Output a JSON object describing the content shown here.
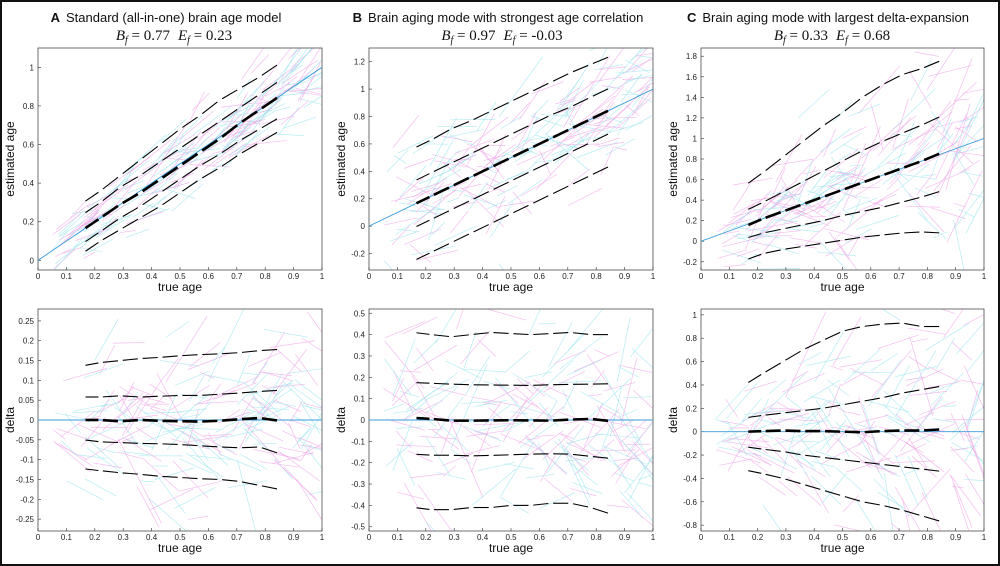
{
  "colors": {
    "ref_line": "#3a9bd8",
    "median": "#000000",
    "quantile": "#000000",
    "trace_pink": "#f0a8e8",
    "trace_cyan": "#9ee6ee"
  },
  "panels": [
    {
      "letter": "A",
      "title": "Standard (all-in-one) brain age model",
      "metrics": {
        "b_label": "B",
        "b_sub": "f",
        "b_value": "0.77",
        "e_label": "E",
        "e_sub": "f",
        "e_value": "0.23"
      }
    },
    {
      "letter": "B",
      "title": "Brain aging mode with strongest age correlation",
      "metrics": {
        "b_label": "B",
        "b_sub": "f",
        "b_value": "0.97",
        "e_label": "E",
        "e_sub": "f",
        "e_value": "-0.03"
      }
    },
    {
      "letter": "C",
      "title": "Brain aging mode with largest delta-expansion",
      "metrics": {
        "b_label": "B",
        "b_sub": "f",
        "b_value": "0.33",
        "e_label": "E",
        "e_sub": "f",
        "e_value": "0.68"
      }
    }
  ],
  "chart_data": [
    {
      "type": "line",
      "panel": "A",
      "row": "top",
      "xlabel": "true age",
      "ylabel": "estimated age",
      "xlim": [
        0,
        1
      ],
      "ylim": [
        -0.05,
        1.1
      ],
      "xticks": [
        "0",
        "0.1",
        "0.2",
        "0.3",
        "0.4",
        "0.5",
        "0.6",
        "0.7",
        "0.8",
        "0.9",
        "1"
      ],
      "yticks": [
        "0",
        "0.2",
        "0.4",
        "0.6",
        "0.8",
        "1"
      ],
      "x": [
        0.16,
        0.22,
        0.29,
        0.36,
        0.43,
        0.5,
        0.57,
        0.64,
        0.71,
        0.78,
        0.85
      ],
      "reference_line": [
        [
          0,
          0
        ],
        [
          1,
          1
        ]
      ],
      "series": [
        {
          "name": "median",
          "values": [
            0.16,
            0.22,
            0.29,
            0.35,
            0.42,
            0.49,
            0.56,
            0.63,
            0.71,
            0.78,
            0.85
          ]
        },
        {
          "name": "q-upper-inner",
          "values": [
            0.24,
            0.3,
            0.38,
            0.44,
            0.51,
            0.58,
            0.65,
            0.72,
            0.79,
            0.86,
            0.93
          ]
        },
        {
          "name": "q-lower-inner",
          "values": [
            0.09,
            0.15,
            0.22,
            0.28,
            0.35,
            0.42,
            0.49,
            0.55,
            0.62,
            0.68,
            0.74
          ]
        },
        {
          "name": "q-upper-outer",
          "values": [
            0.3,
            0.36,
            0.44,
            0.52,
            0.6,
            0.68,
            0.75,
            0.83,
            0.89,
            0.95,
            1.02
          ]
        },
        {
          "name": "q-lower-outer",
          "values": [
            0.04,
            0.1,
            0.16,
            0.22,
            0.28,
            0.35,
            0.42,
            0.48,
            0.55,
            0.61,
            0.67
          ]
        }
      ]
    },
    {
      "type": "line",
      "panel": "A",
      "row": "bottom",
      "xlabel": "true age",
      "ylabel": "delta",
      "xlim": [
        0,
        1
      ],
      "ylim": [
        -0.28,
        0.28
      ],
      "xticks": [
        "0",
        "0.1",
        "0.2",
        "0.3",
        "0.4",
        "0.5",
        "0.6",
        "0.7",
        "0.8",
        "0.9",
        "1"
      ],
      "yticks": [
        "-0.25",
        "-0.2",
        "-0.15",
        "-0.1",
        "-0.05",
        "0",
        "0.05",
        "0.1",
        "0.15",
        "0.2",
        "0.25"
      ],
      "x": [
        0.16,
        0.22,
        0.29,
        0.36,
        0.43,
        0.5,
        0.57,
        0.64,
        0.71,
        0.78,
        0.85
      ],
      "reference_line": [
        [
          0,
          0
        ],
        [
          1,
          0
        ]
      ],
      "series": [
        {
          "name": "median",
          "values": [
            0.0,
            0.0,
            -0.003,
            0.0,
            -0.002,
            -0.003,
            -0.004,
            -0.002,
            0.002,
            0.005,
            -0.002
          ]
        },
        {
          "name": "q-upper-inner",
          "values": [
            0.058,
            0.058,
            0.061,
            0.058,
            0.06,
            0.062,
            0.062,
            0.065,
            0.068,
            0.072,
            0.075
          ]
        },
        {
          "name": "q-lower-inner",
          "values": [
            -0.05,
            -0.055,
            -0.057,
            -0.059,
            -0.06,
            -0.062,
            -0.065,
            -0.068,
            -0.07,
            -0.068,
            -0.085
          ]
        },
        {
          "name": "q-upper-outer",
          "values": [
            0.137,
            0.145,
            0.15,
            0.155,
            0.158,
            0.162,
            0.165,
            0.167,
            0.17,
            0.175,
            0.178
          ]
        },
        {
          "name": "q-lower-outer",
          "values": [
            -0.123,
            -0.128,
            -0.133,
            -0.137,
            -0.142,
            -0.145,
            -0.148,
            -0.15,
            -0.155,
            -0.165,
            -0.175
          ]
        }
      ]
    },
    {
      "type": "line",
      "panel": "B",
      "row": "top",
      "xlabel": "true age",
      "ylabel": "estimated age",
      "xlim": [
        0,
        1
      ],
      "ylim": [
        -0.32,
        1.3
      ],
      "xticks": [
        "0",
        "0.1",
        "0.2",
        "0.3",
        "0.4",
        "0.5",
        "0.6",
        "0.7",
        "0.8",
        "0.9",
        "1"
      ],
      "yticks": [
        "-0.2",
        "0",
        "0.2",
        "0.4",
        "0.6",
        "0.8",
        "1",
        "1.2"
      ],
      "x": [
        0.16,
        0.22,
        0.29,
        0.36,
        0.43,
        0.5,
        0.57,
        0.64,
        0.71,
        0.78,
        0.85
      ],
      "reference_line": [
        [
          0,
          0
        ],
        [
          1,
          1
        ]
      ],
      "series": [
        {
          "name": "median",
          "values": [
            0.16,
            0.22,
            0.29,
            0.36,
            0.43,
            0.5,
            0.57,
            0.64,
            0.71,
            0.78,
            0.85
          ]
        },
        {
          "name": "q-upper-inner",
          "values": [
            0.33,
            0.39,
            0.46,
            0.53,
            0.6,
            0.67,
            0.74,
            0.81,
            0.87,
            0.94,
            1.01
          ]
        },
        {
          "name": "q-lower-inner",
          "values": [
            -0.01,
            0.05,
            0.12,
            0.19,
            0.26,
            0.33,
            0.4,
            0.47,
            0.54,
            0.61,
            0.68
          ]
        },
        {
          "name": "q-upper-outer",
          "values": [
            0.57,
            0.63,
            0.71,
            0.77,
            0.84,
            0.91,
            0.98,
            1.05,
            1.12,
            1.18,
            1.24
          ]
        },
        {
          "name": "q-lower-outer",
          "values": [
            -0.25,
            -0.19,
            -0.12,
            -0.05,
            0.02,
            0.09,
            0.16,
            0.23,
            0.3,
            0.37,
            0.44
          ]
        }
      ]
    },
    {
      "type": "line",
      "panel": "B",
      "row": "bottom",
      "xlabel": "true age",
      "ylabel": "delta",
      "xlim": [
        0,
        1
      ],
      "ylim": [
        -0.52,
        0.52
      ],
      "xticks": [
        "0",
        "0.1",
        "0.2",
        "0.3",
        "0.4",
        "0.5",
        "0.6",
        "0.7",
        "0.8",
        "0.9",
        "1"
      ],
      "yticks": [
        "-0.5",
        "-0.4",
        "-0.3",
        "-0.2",
        "-0.1",
        "0",
        "0.1",
        "0.2",
        "0.3",
        "0.4",
        "0.5"
      ],
      "x": [
        0.16,
        0.22,
        0.29,
        0.36,
        0.43,
        0.5,
        0.57,
        0.64,
        0.71,
        0.78,
        0.85
      ],
      "reference_line": [
        [
          0,
          0
        ],
        [
          1,
          0
        ]
      ],
      "series": [
        {
          "name": "median",
          "values": [
            0.01,
            0.005,
            -0.003,
            -0.003,
            -0.002,
            -0.001,
            -0.002,
            -0.003,
            0.002,
            0.005,
            -0.005
          ]
        },
        {
          "name": "q-upper-inner",
          "values": [
            0.175,
            0.172,
            0.168,
            0.165,
            0.164,
            0.163,
            0.162,
            0.165,
            0.167,
            0.168,
            0.17
          ]
        },
        {
          "name": "q-lower-inner",
          "values": [
            -0.16,
            -0.165,
            -0.165,
            -0.168,
            -0.166,
            -0.163,
            -0.16,
            -0.158,
            -0.16,
            -0.17,
            -0.18
          ]
        },
        {
          "name": "q-upper-outer",
          "values": [
            0.41,
            0.4,
            0.39,
            0.4,
            0.41,
            0.405,
            0.4,
            0.405,
            0.41,
            0.4,
            0.4
          ]
        },
        {
          "name": "q-lower-outer",
          "values": [
            -0.41,
            -0.42,
            -0.42,
            -0.41,
            -0.41,
            -0.4,
            -0.4,
            -0.39,
            -0.39,
            -0.41,
            -0.44
          ]
        }
      ]
    },
    {
      "type": "line",
      "panel": "C",
      "row": "top",
      "xlabel": "true age",
      "ylabel": "estimated age",
      "xlim": [
        0,
        1
      ],
      "ylim": [
        -0.28,
        1.88
      ],
      "xticks": [
        "0",
        "0.1",
        "0.2",
        "0.3",
        "0.4",
        "0.5",
        "0.6",
        "0.7",
        "0.8",
        "0.9",
        "1"
      ],
      "yticks": [
        "-0.2",
        "0",
        "0.2",
        "0.4",
        "0.6",
        "0.8",
        "1",
        "1.2",
        "1.4",
        "1.6",
        "1.8"
      ],
      "x": [
        0.16,
        0.22,
        0.29,
        0.36,
        0.43,
        0.5,
        0.57,
        0.64,
        0.71,
        0.78,
        0.85
      ],
      "reference_line": [
        [
          0,
          0
        ],
        [
          1,
          1
        ]
      ],
      "series": [
        {
          "name": "median",
          "values": [
            0.15,
            0.22,
            0.29,
            0.36,
            0.43,
            0.5,
            0.57,
            0.64,
            0.71,
            0.78,
            0.86
          ]
        },
        {
          "name": "q-upper-inner",
          "values": [
            0.3,
            0.38,
            0.48,
            0.58,
            0.68,
            0.78,
            0.88,
            0.97,
            1.05,
            1.13,
            1.22
          ]
        },
        {
          "name": "q-lower-inner",
          "values": [
            0.03,
            0.08,
            0.12,
            0.16,
            0.2,
            0.25,
            0.29,
            0.33,
            0.38,
            0.43,
            0.49
          ]
        },
        {
          "name": "q-upper-outer",
          "values": [
            0.55,
            0.67,
            0.82,
            0.97,
            1.12,
            1.25,
            1.4,
            1.52,
            1.62,
            1.68,
            1.76
          ]
        },
        {
          "name": "q-lower-outer",
          "values": [
            -0.18,
            -0.12,
            -0.08,
            -0.05,
            -0.02,
            0.01,
            0.04,
            0.06,
            0.08,
            0.09,
            0.08
          ]
        }
      ]
    },
    {
      "type": "line",
      "panel": "C",
      "row": "bottom",
      "xlabel": "true age",
      "ylabel": "delta",
      "xlim": [
        0,
        1
      ],
      "ylim": [
        -0.85,
        1.05
      ],
      "xticks": [
        "0",
        "0.1",
        "0.2",
        "0.3",
        "0.4",
        "0.5",
        "0.6",
        "0.7",
        "0.8",
        "0.9",
        "1"
      ],
      "yticks": [
        "-0.8",
        "-0.6",
        "-0.4",
        "-0.2",
        "0",
        "0.2",
        "0.4",
        "0.6",
        "0.8",
        "1"
      ],
      "x": [
        0.16,
        0.22,
        0.29,
        0.36,
        0.43,
        0.5,
        0.57,
        0.64,
        0.71,
        0.78,
        0.85
      ],
      "reference_line": [
        [
          0,
          0
        ],
        [
          1,
          0
        ]
      ],
      "series": [
        {
          "name": "median",
          "values": [
            0.0,
            0.005,
            0.01,
            0.005,
            0.005,
            0.0,
            -0.005,
            0.005,
            0.01,
            0.01,
            0.02
          ]
        },
        {
          "name": "q-upper-inner",
          "values": [
            0.12,
            0.14,
            0.16,
            0.18,
            0.2,
            0.23,
            0.26,
            0.29,
            0.33,
            0.36,
            0.39
          ]
        },
        {
          "name": "q-lower-inner",
          "values": [
            -0.13,
            -0.15,
            -0.17,
            -0.2,
            -0.22,
            -0.24,
            -0.26,
            -0.28,
            -0.3,
            -0.32,
            -0.34
          ]
        },
        {
          "name": "q-upper-outer",
          "values": [
            0.41,
            0.5,
            0.6,
            0.7,
            0.78,
            0.86,
            0.9,
            0.92,
            0.93,
            0.9,
            0.9
          ]
        },
        {
          "name": "q-lower-outer",
          "values": [
            -0.33,
            -0.36,
            -0.4,
            -0.45,
            -0.5,
            -0.55,
            -0.6,
            -0.63,
            -0.67,
            -0.72,
            -0.77
          ]
        }
      ]
    }
  ]
}
